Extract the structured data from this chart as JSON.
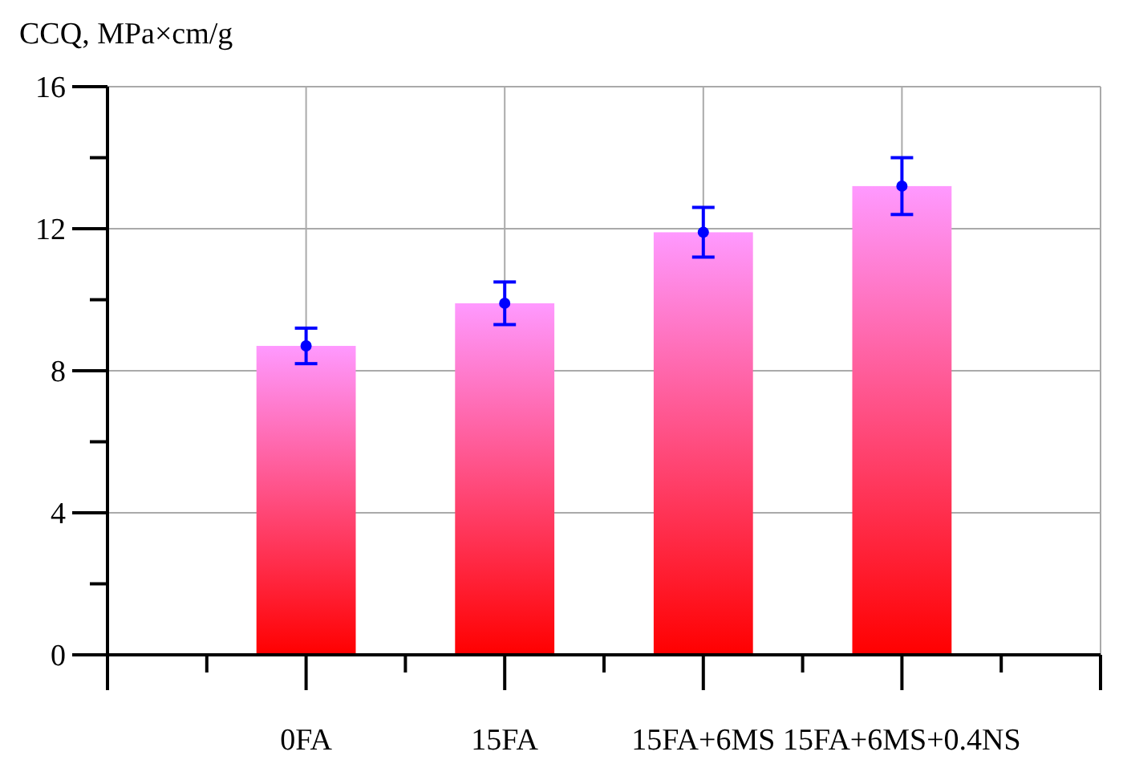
{
  "chart_data": {
    "type": "bar",
    "ylabel": "CCQ, MPa×cm/g",
    "categories": [
      "0FA",
      "15FA",
      "15FA+6MS",
      "15FA+6MS+0.4NS"
    ],
    "series": [
      {
        "color": "#ff0000",
        "values": [
          8.7,
          9.9,
          11.9,
          13.2
        ]
      },
      {
        "type": "scatter",
        "color": "#0000ff",
        "x": [
          "0FA",
          "15FA",
          "15FA+6MS",
          "15FA+6MS+0.4NS"
        ],
        "values": [
          8.7,
          9.9,
          11.9,
          13.2
        ],
        "errors": [
          0.5,
          0.6,
          0.7,
          0.8
        ]
      }
    ],
    "ylim": [
      0,
      16
    ],
    "yticks": [
      0,
      4,
      8,
      12,
      16
    ],
    "grid": true,
    "marker": "circle"
  }
}
